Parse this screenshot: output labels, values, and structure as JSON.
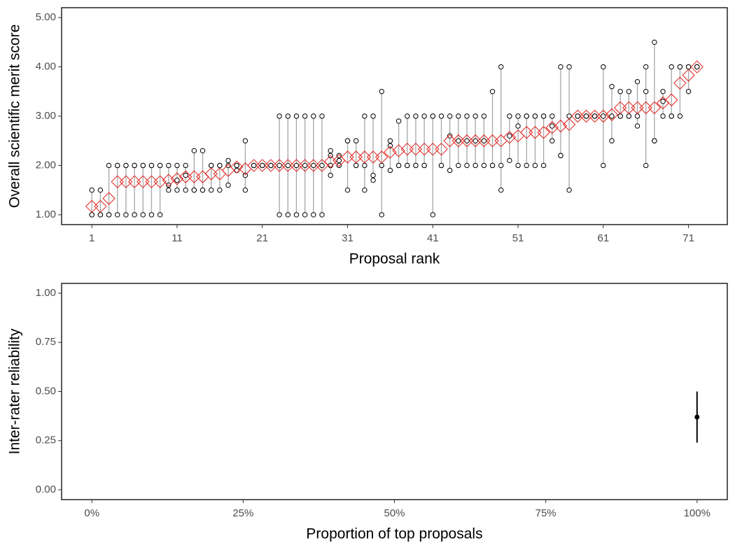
{
  "chart_data": [
    {
      "type": "range",
      "xlabel": "Proposal rank",
      "ylabel": "Overall scientific merit score",
      "x": [
        1,
        2,
        3,
        4,
        5,
        6,
        7,
        8,
        9,
        10,
        11,
        12,
        13,
        14,
        15,
        16,
        17,
        18,
        19,
        20,
        21,
        22,
        23,
        24,
        25,
        26,
        27,
        28,
        29,
        30,
        31,
        32,
        33,
        34,
        35,
        36,
        37,
        38,
        39,
        40,
        41,
        42,
        43,
        44,
        45,
        46,
        47,
        48,
        49,
        50,
        51,
        52,
        53,
        54,
        55,
        56,
        57,
        58,
        59,
        60,
        61,
        62,
        63,
        64,
        65,
        66,
        67,
        68,
        69,
        70,
        71,
        72
      ],
      "ratings": [
        [
          1,
          1,
          1.5
        ],
        [
          1,
          1,
          1.5
        ],
        [
          1,
          1,
          2
        ],
        [
          1,
          2,
          2
        ],
        [
          1,
          2,
          2
        ],
        [
          1,
          2,
          2
        ],
        [
          1,
          2,
          2
        ],
        [
          1,
          2,
          2
        ],
        [
          1,
          2,
          2
        ],
        [
          1.5,
          1.6,
          2
        ],
        [
          1.5,
          1.7,
          2
        ],
        [
          1.5,
          1.8,
          2
        ],
        [
          1.5,
          1.5,
          2.3
        ],
        [
          1.5,
          1.5,
          2.3
        ],
        [
          1.5,
          2,
          2
        ],
        [
          1.5,
          2,
          2
        ],
        [
          1.6,
          2,
          2.1
        ],
        [
          1.9,
          2,
          2
        ],
        [
          1.5,
          1.8,
          2.5
        ],
        [
          2,
          2,
          2
        ],
        [
          2,
          2,
          2
        ],
        [
          2,
          2,
          2
        ],
        [
          1,
          2,
          3
        ],
        [
          1,
          2,
          3
        ],
        [
          1,
          2,
          3
        ],
        [
          1,
          2,
          3
        ],
        [
          1,
          2,
          3
        ],
        [
          1,
          2,
          3
        ],
        [
          1.8,
          2,
          2.2,
          2.3
        ],
        [
          2,
          2.1,
          2.2
        ],
        [
          1.5,
          2.5,
          2.5
        ],
        [
          2,
          2,
          2.5
        ],
        [
          1.5,
          2,
          3
        ],
        [
          1.7,
          1.8,
          3
        ],
        [
          1,
          2,
          3.5
        ],
        [
          1.9,
          2.4,
          2.5
        ],
        [
          2,
          2,
          2.9
        ],
        [
          2,
          2,
          3
        ],
        [
          2,
          2,
          3
        ],
        [
          2,
          2,
          3
        ],
        [
          1,
          3,
          3
        ],
        [
          2,
          2,
          3
        ],
        [
          1.9,
          2.6,
          3
        ],
        [
          2,
          2.5,
          3
        ],
        [
          2,
          2.5,
          3
        ],
        [
          2,
          2.5,
          3
        ],
        [
          2,
          2.5,
          3
        ],
        [
          2,
          2,
          3.5
        ],
        [
          1.5,
          2,
          4
        ],
        [
          2.1,
          2.6,
          3
        ],
        [
          2,
          2.8,
          3
        ],
        [
          2,
          3,
          3
        ],
        [
          2,
          3,
          3
        ],
        [
          2,
          3,
          3
        ],
        [
          2.5,
          2.8,
          3
        ],
        [
          2.2,
          2.2,
          4
        ],
        [
          1.5,
          3,
          4
        ],
        [
          3,
          3,
          3
        ],
        [
          3,
          3,
          3
        ],
        [
          3,
          3,
          3
        ],
        [
          2,
          3,
          4
        ],
        [
          2.5,
          3,
          3.6
        ],
        [
          3,
          3,
          3.5
        ],
        [
          3,
          3,
          3.5
        ],
        [
          2.8,
          3,
          3.7
        ],
        [
          2,
          3.5,
          4
        ],
        [
          2.5,
          2.5,
          4.5
        ],
        [
          3,
          3.3,
          3.5
        ],
        [
          3,
          3,
          4
        ],
        [
          3,
          4,
          4
        ],
        [
          3.5,
          4,
          4
        ],
        [
          4,
          4,
          4
        ]
      ],
      "means": [
        1.17,
        1.17,
        1.33,
        1.67,
        1.67,
        1.67,
        1.67,
        1.67,
        1.67,
        1.7,
        1.73,
        1.77,
        1.77,
        1.77,
        1.83,
        1.83,
        1.9,
        1.97,
        1.93,
        2,
        2,
        2,
        2,
        2,
        2,
        2,
        2,
        2,
        2.08,
        2.1,
        2.17,
        2.17,
        2.17,
        2.17,
        2.17,
        2.27,
        2.3,
        2.33,
        2.33,
        2.33,
        2.33,
        2.33,
        2.5,
        2.5,
        2.5,
        2.5,
        2.5,
        2.5,
        2.5,
        2.57,
        2.6,
        2.67,
        2.67,
        2.67,
        2.77,
        2.8,
        2.83,
        3,
        3,
        3,
        3,
        3.03,
        3.17,
        3.17,
        3.17,
        3.17,
        3.17,
        3.27,
        3.33,
        3.67,
        3.83,
        4
      ],
      "point_color": "#000000",
      "range_color": "#a6a6a6",
      "mean_color": "#e0201b",
      "xlim": [
        -2.55,
        75.55
      ],
      "ylim": [
        0.8,
        5.2
      ],
      "xticks": [
        1,
        11,
        21,
        31,
        41,
        51,
        61,
        71
      ],
      "yticks": [
        {
          "value": 1,
          "label": "1.00"
        },
        {
          "value": 2,
          "label": "2.00"
        },
        {
          "value": 3,
          "label": "3.00"
        },
        {
          "value": 4,
          "label": "4.00"
        },
        {
          "value": 5,
          "label": "5.00"
        }
      ]
    },
    {
      "type": "errorbar",
      "xlabel": "Proportion of top proposals",
      "ylabel": "Inter-rater reliability",
      "x": [
        100
      ],
      "values": [
        0.37
      ],
      "lower": [
        0.24
      ],
      "upper": [
        0.5
      ],
      "color": "#000000",
      "xlim": [
        -5,
        105
      ],
      "ylim": [
        -0.05,
        1.05
      ],
      "xticks": [
        {
          "value": 0,
          "label": "0%"
        },
        {
          "value": 25,
          "label": "25%"
        },
        {
          "value": 50,
          "label": "50%"
        },
        {
          "value": 75,
          "label": "75%"
        },
        {
          "value": 100,
          "label": "100%"
        }
      ],
      "yticks": [
        {
          "value": 0,
          "label": "0.00"
        },
        {
          "value": 0.25,
          "label": "0.25"
        },
        {
          "value": 0.5,
          "label": "0.50"
        },
        {
          "value": 0.75,
          "label": "0.75"
        },
        {
          "value": 1,
          "label": "1.00"
        }
      ]
    }
  ]
}
